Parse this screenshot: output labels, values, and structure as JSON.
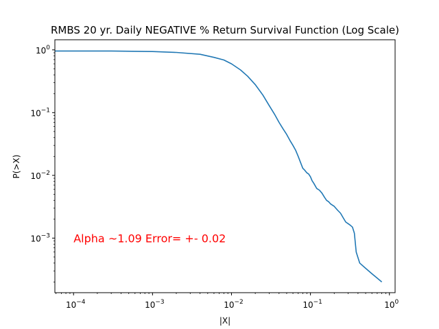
{
  "chart_data": {
    "type": "line",
    "title": "RMBS 20 yr. Daily NEGATIVE % Return Survival Function (Log Scale)",
    "xlabel": "|X|",
    "ylabel": "P(>X)",
    "xscale": "log",
    "yscale": "log",
    "xlim": [
      5.8e-05,
      1.18
    ],
    "ylim": [
      0.000135,
      1.45
    ],
    "grid": false,
    "x_ticks": [
      {
        "value": 0.0001,
        "base": "10",
        "exp": "−4"
      },
      {
        "value": 0.001,
        "base": "10",
        "exp": "−3"
      },
      {
        "value": 0.01,
        "base": "10",
        "exp": "−2"
      },
      {
        "value": 0.1,
        "base": "10",
        "exp": "−1"
      },
      {
        "value": 1,
        "base": "10",
        "exp": "0"
      }
    ],
    "y_ticks": [
      {
        "value": 0.001,
        "base": "10",
        "exp": "−3"
      },
      {
        "value": 0.01,
        "base": "10",
        "exp": "−2"
      },
      {
        "value": 0.1,
        "base": "10",
        "exp": "−1"
      },
      {
        "value": 1,
        "base": "10",
        "exp": "0"
      }
    ],
    "series": [
      {
        "color": "#1f77b4",
        "x": [
          5.8e-05,
          0.0001,
          0.0003,
          0.001,
          0.002,
          0.004,
          0.006,
          0.008,
          0.01,
          0.013,
          0.016,
          0.02,
          0.025,
          0.03,
          0.035,
          0.04,
          0.045,
          0.05,
          0.055,
          0.06,
          0.065,
          0.07,
          0.075,
          0.08,
          0.085,
          0.09,
          0.095,
          0.1,
          0.105,
          0.11,
          0.12,
          0.13,
          0.14,
          0.15,
          0.16,
          0.17,
          0.18,
          0.2,
          0.22,
          0.24,
          0.26,
          0.28,
          0.3,
          0.32,
          0.34,
          0.36,
          0.38,
          0.42,
          0.5,
          0.6,
          0.7,
          0.8
        ],
        "y": [
          0.96,
          0.96,
          0.96,
          0.94,
          0.91,
          0.85,
          0.76,
          0.69,
          0.6,
          0.48,
          0.38,
          0.28,
          0.19,
          0.13,
          0.095,
          0.07,
          0.055,
          0.045,
          0.036,
          0.03,
          0.025,
          0.02,
          0.016,
          0.013,
          0.012,
          0.011,
          0.0105,
          0.0095,
          0.0082,
          0.0075,
          0.0062,
          0.0058,
          0.0052,
          0.0045,
          0.004,
          0.0038,
          0.0035,
          0.0032,
          0.0028,
          0.0025,
          0.0021,
          0.0018,
          0.0017,
          0.0016,
          0.0015,
          0.0012,
          0.0006,
          0.0004,
          0.00033,
          0.00027,
          0.00023,
          0.0002
        ]
      }
    ],
    "annotations": [
      {
        "text": "Alpha ~1.09  Error= +- 0.02",
        "x": 0.0001,
        "y": 0.001,
        "color": "#ff0000"
      }
    ]
  }
}
